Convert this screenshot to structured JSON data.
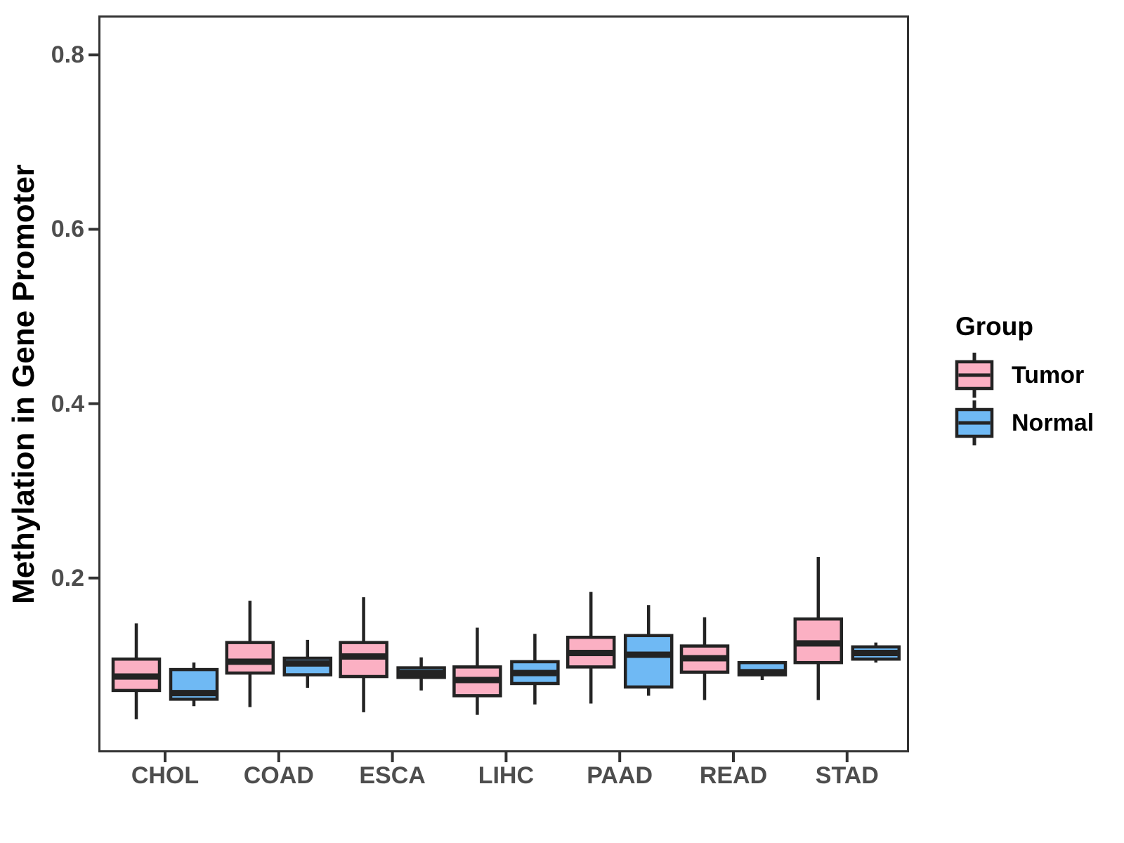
{
  "legend": {
    "title": "Group",
    "entries": [
      {
        "label": "Tumor",
        "color": "#FBB0C3"
      },
      {
        "label": "Normal",
        "color": "#6FB9F4"
      }
    ]
  },
  "colors": {
    "box_border": "#232323",
    "median": "#232323",
    "axis_line": "#333333",
    "tick_label": "#4d4d4d",
    "title_text": "#000000",
    "background": "#ffffff",
    "tumor_fill": "#FBB0C3",
    "normal_fill": "#6FB9F4"
  },
  "chart_data": {
    "type": "boxplot",
    "title": "",
    "xlabel": "",
    "ylabel": "Methylation in Gene Promoter",
    "categories": [
      "CHOL",
      "COAD",
      "ESCA",
      "LIHC",
      "PAAD",
      "READ",
      "STAD"
    ],
    "ylim": [
      0,
      0.845
    ],
    "yticks": [
      0.2,
      0.4,
      0.6,
      0.8
    ],
    "ytick_labels": [
      "0.2",
      "0.4",
      "0.6",
      "0.8"
    ],
    "grid": false,
    "legend_position": "right",
    "series": [
      {
        "name": "Tumor",
        "color": "#FBB0C3",
        "boxes": [
          {
            "category": "CHOL",
            "whisker_low": 0.038,
            "q1": 0.071,
            "median": 0.087,
            "q3": 0.107,
            "whisker_high": 0.148
          },
          {
            "category": "COAD",
            "whisker_low": 0.052,
            "q1": 0.091,
            "median": 0.104,
            "q3": 0.126,
            "whisker_high": 0.174
          },
          {
            "category": "ESCA",
            "whisker_low": 0.046,
            "q1": 0.087,
            "median": 0.11,
            "q3": 0.126,
            "whisker_high": 0.178
          },
          {
            "category": "LIHC",
            "whisker_low": 0.043,
            "q1": 0.065,
            "median": 0.083,
            "q3": 0.098,
            "whisker_high": 0.143
          },
          {
            "category": "PAAD",
            "whisker_low": 0.056,
            "q1": 0.098,
            "median": 0.114,
            "q3": 0.132,
            "whisker_high": 0.184
          },
          {
            "category": "READ",
            "whisker_low": 0.06,
            "q1": 0.092,
            "median": 0.108,
            "q3": 0.122,
            "whisker_high": 0.155
          },
          {
            "category": "STAD",
            "whisker_low": 0.06,
            "q1": 0.103,
            "median": 0.125,
            "q3": 0.153,
            "whisker_high": 0.224
          }
        ]
      },
      {
        "name": "Normal",
        "color": "#6FB9F4",
        "boxes": [
          {
            "category": "CHOL",
            "whisker_low": 0.053,
            "q1": 0.061,
            "median": 0.068,
            "q3": 0.095,
            "whisker_high": 0.103
          },
          {
            "category": "COAD",
            "whisker_low": 0.074,
            "q1": 0.089,
            "median": 0.102,
            "q3": 0.108,
            "whisker_high": 0.129
          },
          {
            "category": "ESCA",
            "whisker_low": 0.071,
            "q1": 0.086,
            "median": 0.091,
            "q3": 0.097,
            "whisker_high": 0.109
          },
          {
            "category": "LIHC",
            "whisker_low": 0.055,
            "q1": 0.079,
            "median": 0.091,
            "q3": 0.104,
            "whisker_high": 0.136
          },
          {
            "category": "PAAD",
            "whisker_low": 0.065,
            "q1": 0.075,
            "median": 0.112,
            "q3": 0.134,
            "whisker_high": 0.169
          },
          {
            "category": "READ",
            "whisker_low": 0.083,
            "q1": 0.089,
            "median": 0.092,
            "q3": 0.103,
            "whisker_high": 0.104
          },
          {
            "category": "STAD",
            "whisker_low": 0.103,
            "q1": 0.107,
            "median": 0.114,
            "q3": 0.121,
            "whisker_high": 0.126
          }
        ]
      }
    ]
  }
}
